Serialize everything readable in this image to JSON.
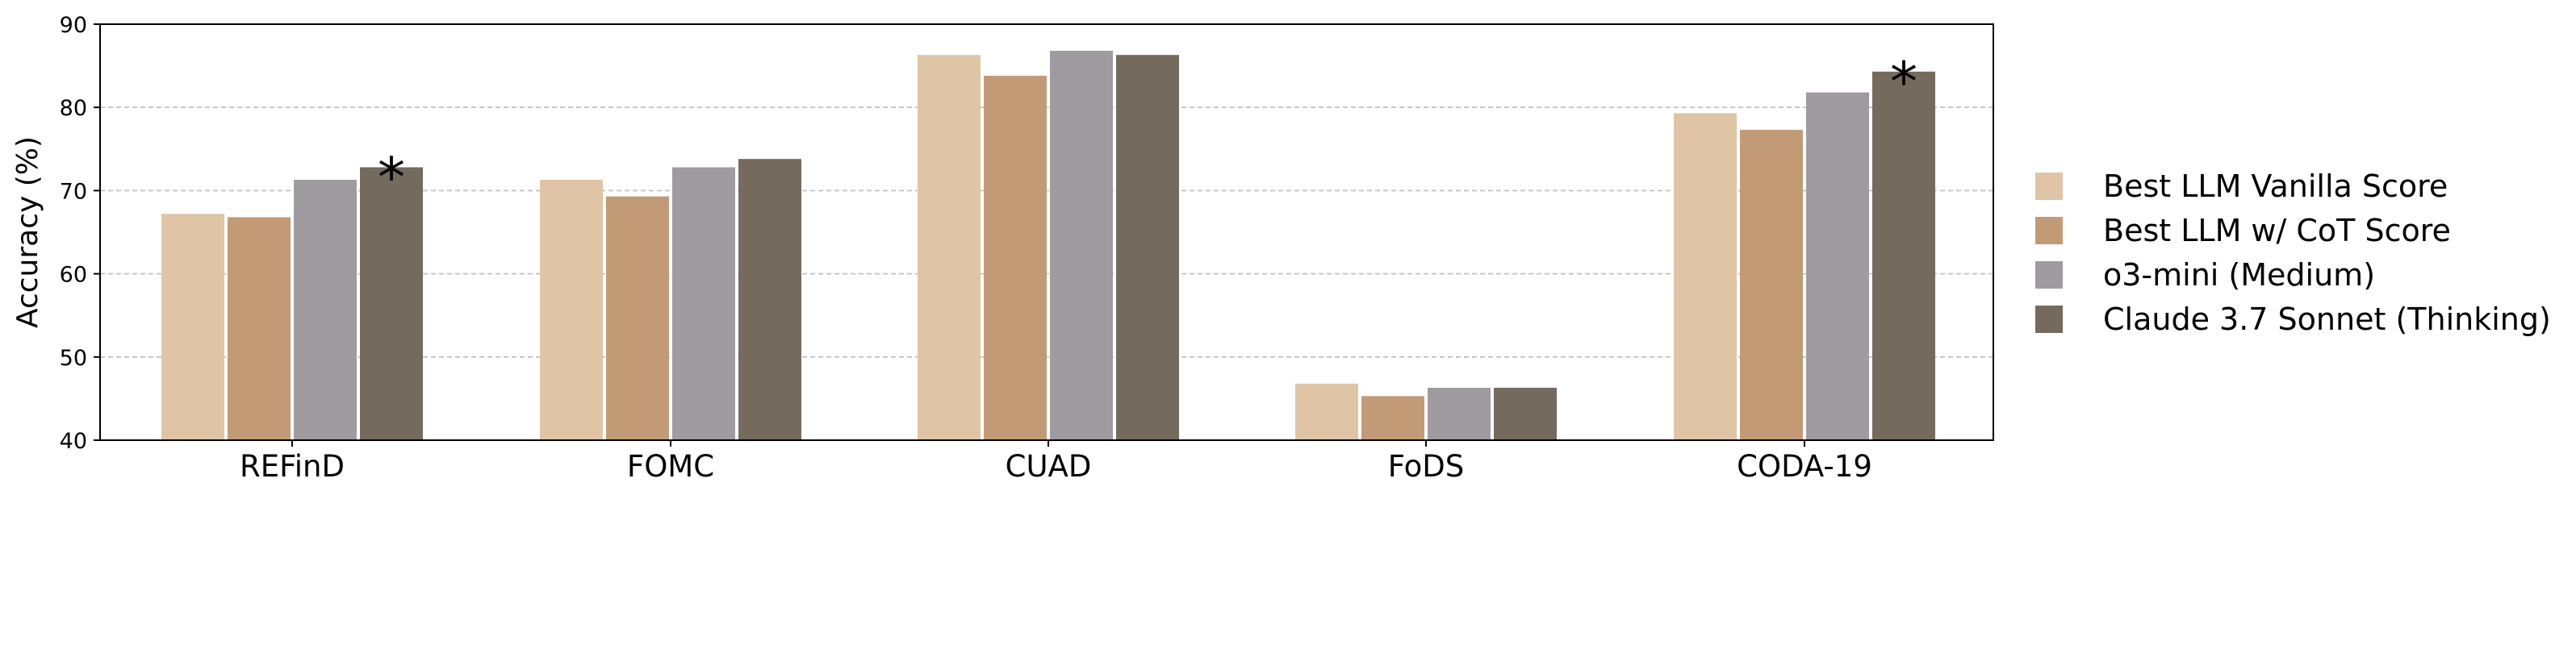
{
  "chart_data": {
    "type": "bar",
    "ylabel": "Accuracy (%)",
    "xlabel": "",
    "ylim": [
      40,
      90
    ],
    "yticks": [
      40,
      50,
      60,
      70,
      80,
      90
    ],
    "grid": "y-dashed",
    "legend_position": "right",
    "categories": [
      "REFinD",
      "FOMC",
      "CUAD",
      "FoDS",
      "CODA-19"
    ],
    "series": [
      {
        "name": "Best LLM Vanilla Score",
        "color": "#dfc5a5",
        "values": [
          67.2,
          71.3,
          86.3,
          46.8,
          79.3
        ]
      },
      {
        "name": "Best LLM w/ CoT Score",
        "color": "#c29a76",
        "values": [
          66.8,
          69.3,
          83.8,
          45.3,
          77.3
        ]
      },
      {
        "name": "o3-mini (Medium)",
        "color": "#a09aa1",
        "values": [
          71.3,
          72.8,
          86.8,
          46.3,
          81.8
        ]
      },
      {
        "name": "Claude 3.7 Sonnet (Thinking)",
        "color": "#746a5d",
        "values": [
          72.8,
          73.8,
          86.3,
          46.3,
          84.3
        ]
      }
    ],
    "annotations": [
      {
        "text": "*",
        "category": "REFinD",
        "series": "Claude 3.7 Sonnet (Thinking)"
      },
      {
        "text": "*",
        "category": "CODA-19",
        "series": "Claude 3.7 Sonnet (Thinking)"
      }
    ]
  }
}
